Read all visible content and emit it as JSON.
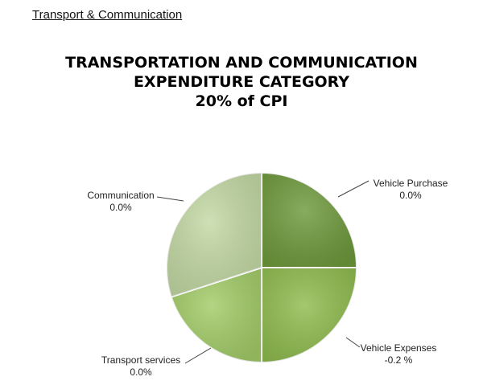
{
  "header": {
    "section_title": "Transport & Communication"
  },
  "chart_data": {
    "type": "pie",
    "title_lines": [
      "TRANSPORTATION AND COMMUNICATION",
      "EXPENDITURE CATEGORY",
      "20% of CPI"
    ],
    "slices": [
      {
        "name": "Vehicle Purchase",
        "label": "0.0%",
        "share": 0.25,
        "color": "#6e9a3c"
      },
      {
        "name": "Vehicle Expenses",
        "label": "-0.2 %",
        "share": 0.25,
        "color": "#8fbc4e"
      },
      {
        "name": "Transport services",
        "label": "0.0%",
        "share": 0.2,
        "color": "#a3cc68"
      },
      {
        "name": "Communication",
        "label": "0.0%",
        "share": 0.3,
        "color": "#c3d9a4"
      }
    ]
  }
}
